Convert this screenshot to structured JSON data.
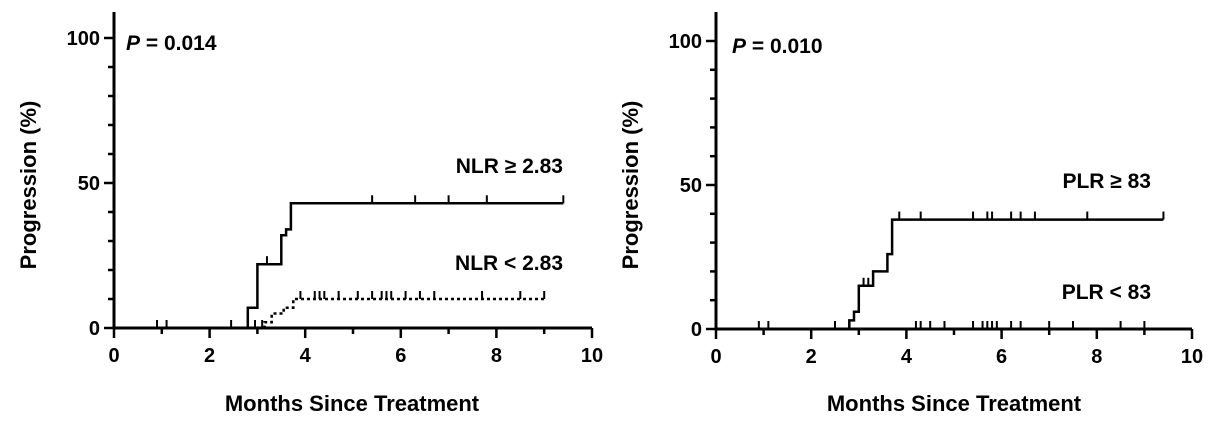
{
  "chart_data": [
    {
      "type": "line",
      "subtype": "kaplan-meier",
      "xlabel": "Months Since Treatment",
      "ylabel": "Progression (%)",
      "xlim": [
        0,
        10
      ],
      "ylim": [
        0,
        100
      ],
      "xticks": [
        "0",
        "2",
        "4",
        "6",
        "8",
        "10"
      ],
      "yticks": [
        "0",
        "50",
        "100"
      ],
      "p_prefix": "P",
      "p_value": "= 0.014",
      "series": [
        {
          "name": "NLR ≥ 2.83",
          "style": "solid",
          "steps": [
            [
              0,
              0
            ],
            [
              2.8,
              0
            ],
            [
              2.8,
              7
            ],
            [
              3.0,
              7
            ],
            [
              3.0,
              22
            ],
            [
              3.5,
              22
            ],
            [
              3.5,
              32
            ],
            [
              3.6,
              32
            ],
            [
              3.6,
              34
            ],
            [
              3.7,
              34
            ],
            [
              3.7,
              43
            ],
            [
              9.4,
              43
            ]
          ],
          "censors": [
            [
              0.9,
              0
            ],
            [
              1.1,
              0
            ],
            [
              2.45,
              0
            ],
            [
              3.2,
              22
            ],
            [
              5.4,
              43
            ],
            [
              6.3,
              43
            ],
            [
              7.0,
              43
            ],
            [
              7.8,
              43
            ],
            [
              9.4,
              43
            ]
          ]
        },
        {
          "name": "NLR < 2.83",
          "style": "dotted",
          "steps": [
            [
              0,
              0
            ],
            [
              3.15,
              0
            ],
            [
              3.15,
              2
            ],
            [
              3.3,
              2
            ],
            [
              3.3,
              5
            ],
            [
              3.55,
              5
            ],
            [
              3.55,
              7
            ],
            [
              3.75,
              7
            ],
            [
              3.75,
              10
            ],
            [
              9.0,
              10
            ]
          ],
          "censors": [
            [
              2.95,
              0
            ],
            [
              3.1,
              0
            ],
            [
              3.9,
              10
            ],
            [
              4.2,
              10
            ],
            [
              4.3,
              10
            ],
            [
              4.4,
              10
            ],
            [
              4.7,
              10
            ],
            [
              5.1,
              10
            ],
            [
              5.4,
              10
            ],
            [
              5.6,
              10
            ],
            [
              5.7,
              10
            ],
            [
              5.8,
              10
            ],
            [
              6.1,
              10
            ],
            [
              6.4,
              10
            ],
            [
              6.7,
              10
            ],
            [
              7.7,
              10
            ],
            [
              8.5,
              10
            ],
            [
              9.0,
              10
            ]
          ]
        }
      ]
    },
    {
      "type": "line",
      "subtype": "kaplan-meier",
      "xlabel": "Months Since Treatment",
      "ylabel": "Progression (%)",
      "xlim": [
        0,
        10
      ],
      "ylim": [
        0,
        100
      ],
      "xticks": [
        "0",
        "2",
        "4",
        "6",
        "8",
        "10"
      ],
      "yticks": [
        "0",
        "50",
        "100"
      ],
      "p_prefix": "P",
      "p_value": "= 0.010",
      "series": [
        {
          "name": "PLR ≥ 83",
          "style": "solid",
          "steps": [
            [
              0,
              0
            ],
            [
              2.8,
              0
            ],
            [
              2.8,
              3
            ],
            [
              2.9,
              3
            ],
            [
              2.9,
              6
            ],
            [
              3.0,
              6
            ],
            [
              3.0,
              15
            ],
            [
              3.3,
              15
            ],
            [
              3.3,
              20
            ],
            [
              3.6,
              20
            ],
            [
              3.6,
              26
            ],
            [
              3.7,
              26
            ],
            [
              3.7,
              38
            ],
            [
              9.4,
              38
            ]
          ],
          "censors": [
            [
              0.9,
              0
            ],
            [
              1.1,
              0
            ],
            [
              2.5,
              0
            ],
            [
              3.1,
              15
            ],
            [
              3.2,
              15
            ],
            [
              3.85,
              38
            ],
            [
              4.3,
              38
            ],
            [
              5.4,
              38
            ],
            [
              5.7,
              38
            ],
            [
              5.8,
              38
            ],
            [
              6.2,
              38
            ],
            [
              6.4,
              38
            ],
            [
              6.7,
              38
            ],
            [
              7.8,
              38
            ],
            [
              9.4,
              38
            ]
          ]
        },
        {
          "name": "PLR < 83",
          "style": "solid",
          "steps": [
            [
              0,
              0
            ],
            [
              9.4,
              0
            ]
          ],
          "censors": [
            [
              4.2,
              0
            ],
            [
              4.3,
              0
            ],
            [
              4.5,
              0
            ],
            [
              4.8,
              0
            ],
            [
              5.4,
              0
            ],
            [
              5.6,
              0
            ],
            [
              5.7,
              0
            ],
            [
              5.8,
              0
            ],
            [
              5.9,
              0
            ],
            [
              6.2,
              0
            ],
            [
              6.4,
              0
            ],
            [
              7.0,
              0
            ],
            [
              7.5,
              0
            ],
            [
              8.5,
              0
            ],
            [
              9.0,
              0
            ]
          ]
        }
      ]
    }
  ]
}
